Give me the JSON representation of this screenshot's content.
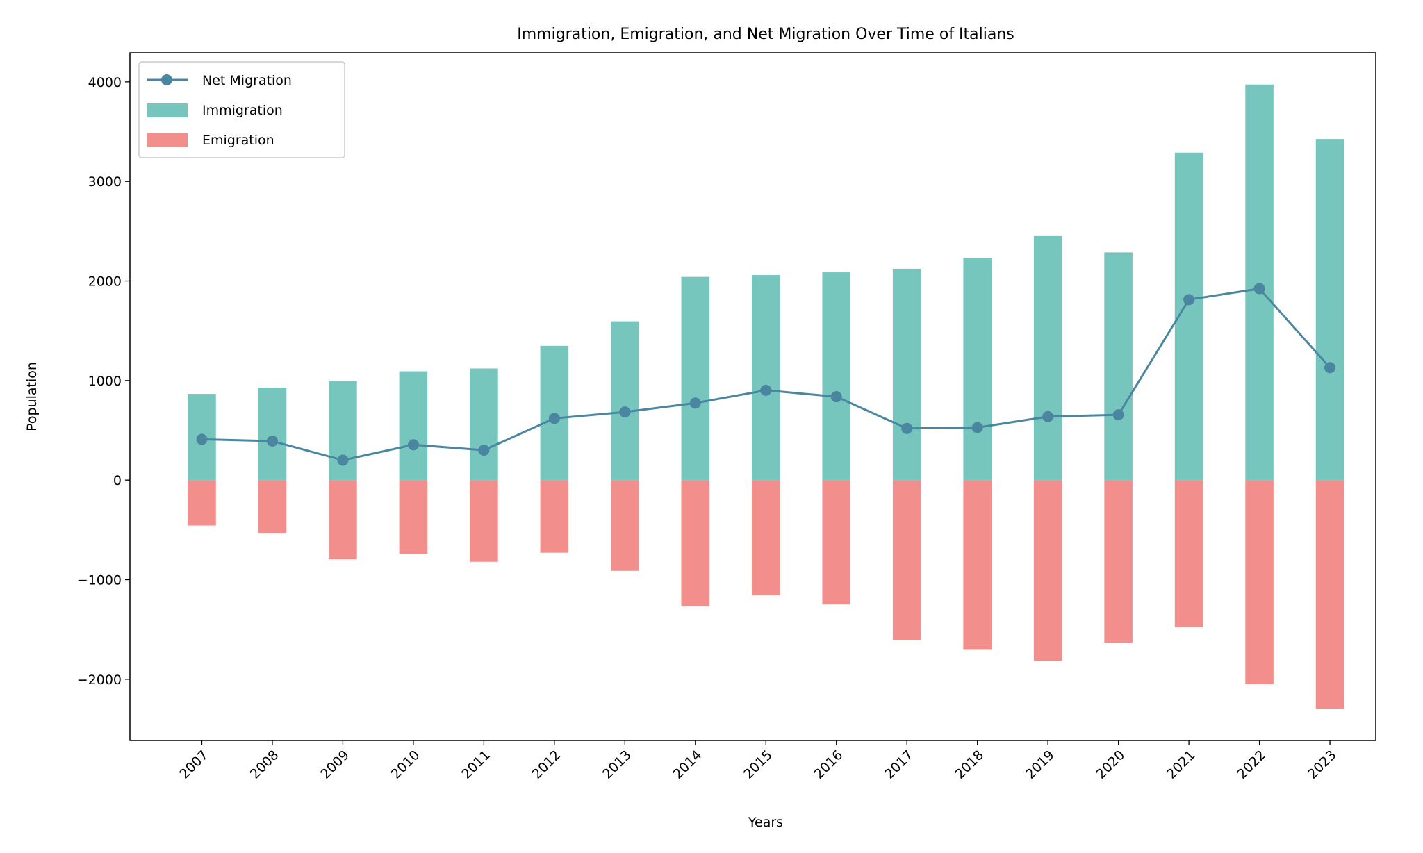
{
  "chart_data": {
    "type": "bar",
    "title": "Immigration, Emigration, and Net Migration Over Time of Italians",
    "xlabel": "Years",
    "ylabel": "Population",
    "categories": [
      "2007",
      "2008",
      "2009",
      "2010",
      "2011",
      "2012",
      "2013",
      "2014",
      "2015",
      "2016",
      "2017",
      "2018",
      "2019",
      "2020",
      "2021",
      "2022",
      "2023"
    ],
    "series": [
      {
        "name": "Immigration",
        "type": "bar",
        "color": "#76c6bd",
        "values": [
          866,
          929,
          995,
          1093,
          1121,
          1349,
          1595,
          2041,
          2059,
          2087,
          2123,
          2232,
          2451,
          2287,
          3289,
          3973,
          3426
        ]
      },
      {
        "name": "Emigration",
        "type": "bar",
        "color": "#f28e8b",
        "values": [
          -456,
          -537,
          -795,
          -738,
          -820,
          -729,
          -911,
          -1267,
          -1157,
          -1249,
          -1604,
          -1704,
          -1813,
          -1631,
          -1476,
          -2050,
          -2296
        ]
      },
      {
        "name": "Net Migration",
        "type": "line",
        "color": "#4a86a0",
        "values": [
          410,
          392,
          200,
          355,
          301,
          620,
          684,
          774,
          902,
          838,
          519,
          528,
          638,
          656,
          1813,
          1923,
          1130
        ]
      }
    ],
    "yticks": [
      -2000,
      -1000,
      0,
      1000,
      2000,
      3000,
      4000
    ],
    "ytick_labels": [
      "−2000",
      "−1000",
      "0",
      "1000",
      "2000",
      "3000",
      "4000"
    ],
    "ylim": [
      -2615,
      4292
    ],
    "xlim_index": [
      -1.02,
      16.65
    ],
    "grid": false,
    "legend": {
      "placement": "top-left",
      "entries": [
        "Net Migration",
        "Immigration",
        "Emigration"
      ]
    }
  }
}
